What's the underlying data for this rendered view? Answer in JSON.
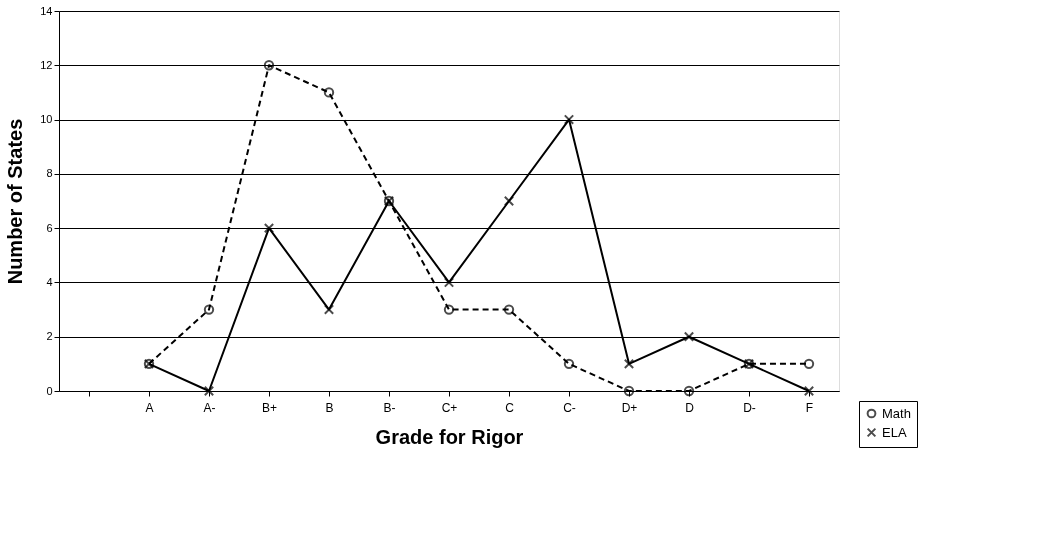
{
  "chart_data": {
    "type": "line",
    "xlabel": "Grade for Rigor",
    "ylabel": "Number of States",
    "categories": [
      null,
      "A",
      "A-",
      "B+",
      "B",
      "B-",
      "C+",
      "C",
      "C-",
      "D+",
      "D",
      "D-",
      "F"
    ],
    "ylim": [
      0,
      14
    ],
    "yticks": [
      0,
      2,
      4,
      6,
      8,
      10,
      12,
      14
    ],
    "grid": "y",
    "legend": "bottom right",
    "series": [
      {
        "name": "Math",
        "color": "#000000",
        "marker": "circle",
        "line_style": "dashed",
        "values": [
          null,
          1,
          3,
          12,
          11,
          7,
          3,
          3,
          1,
          0,
          0,
          1,
          1
        ]
      },
      {
        "name": "ELA",
        "color": "#000000",
        "marker": "cross",
        "line_style": "solid",
        "values": [
          null,
          1,
          0,
          6,
          3,
          7,
          4,
          7,
          10,
          1,
          2,
          1,
          0
        ]
      }
    ]
  }
}
